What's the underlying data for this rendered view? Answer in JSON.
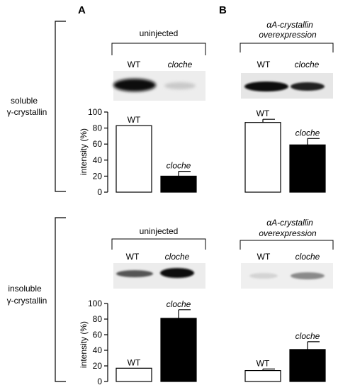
{
  "panel_labels": [
    "A",
    "B"
  ],
  "rows": [
    {
      "side_label": [
        "soluble",
        "γ-crystallin"
      ],
      "groups": [
        {
          "label": "uninjected",
          "italic": false,
          "lane_labels": [
            "WT",
            "cloche"
          ]
        },
        {
          "label_lines": [
            "αA-crystallin",
            "overexpression"
          ],
          "italic": true,
          "lane_labels": [
            "WT",
            "cloche"
          ]
        }
      ]
    },
    {
      "side_label": [
        "insoluble",
        "γ-crystallin"
      ],
      "groups": [
        {
          "label": "uninjected",
          "italic": false,
          "lane_labels": [
            "WT",
            "cloche"
          ]
        },
        {
          "label_lines": [
            "αA-crystallin",
            "overexpression"
          ],
          "italic": true,
          "lane_labels": [
            "WT",
            "cloche"
          ]
        }
      ]
    }
  ],
  "chart_data": [
    {
      "type": "bar",
      "ylabel": "intensity (%)",
      "ylim": [
        0,
        100
      ],
      "yticks": [
        0,
        20,
        40,
        60,
        80,
        100
      ],
      "bars": [
        {
          "panel": "A",
          "label": "WT",
          "value": 83,
          "error": 0,
          "fill": "#ffffff"
        },
        {
          "panel": "A",
          "label": "cloche",
          "value": 20,
          "error": 6,
          "fill": "#000000"
        },
        {
          "panel": "B",
          "label": "WT",
          "value": 87,
          "error": 4,
          "fill": "#ffffff"
        },
        {
          "panel": "B",
          "label": "cloche",
          "value": 59,
          "error": 8,
          "fill": "#000000"
        }
      ]
    },
    {
      "type": "bar",
      "ylabel": "intensity (%)",
      "ylim": [
        0,
        100
      ],
      "yticks": [
        0,
        20,
        40,
        60,
        80,
        100
      ],
      "bars": [
        {
          "panel": "A",
          "label": "WT",
          "value": 17,
          "error": 0,
          "fill": "#ffffff"
        },
        {
          "panel": "A",
          "label": "cloche",
          "value": 81,
          "error": 11,
          "fill": "#000000"
        },
        {
          "panel": "B",
          "label": "WT",
          "value": 14,
          "error": 2,
          "fill": "#ffffff"
        },
        {
          "panel": "B",
          "label": "cloche",
          "value": 41,
          "error": 10,
          "fill": "#000000"
        }
      ]
    }
  ]
}
